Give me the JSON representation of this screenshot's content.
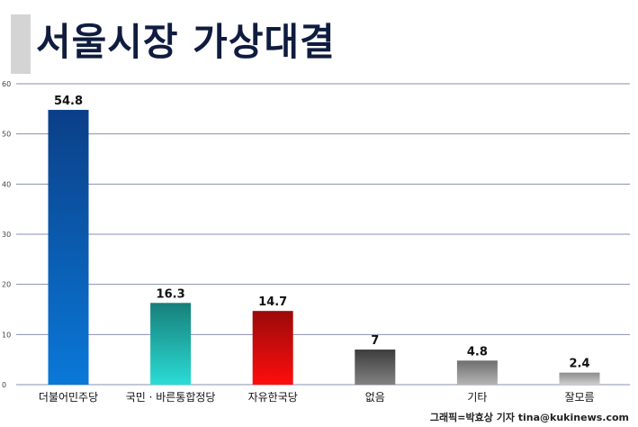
{
  "header": {
    "title": "서울시장 가상대결"
  },
  "footer": {
    "credit": "그래픽=박효상 기자 tina@kukinews.com"
  },
  "chart_data": {
    "type": "bar",
    "title": "서울시장 가상대결",
    "xlabel": "",
    "ylabel": "",
    "ylim": [
      0,
      60
    ],
    "yticks": [
      0,
      10,
      20,
      30,
      40,
      50,
      60
    ],
    "grid": true,
    "categories": [
      "더불어민주당",
      "국민 · 바른통합정당",
      "자유한국당",
      "없음",
      "기타",
      "잘모름"
    ],
    "values": [
      54.8,
      16.3,
      14.7,
      7,
      4.8,
      2.4
    ],
    "data_labels": [
      "54.8",
      "16.3",
      "14.7",
      "7",
      "4.8",
      "2.4"
    ],
    "bar_colors": [
      {
        "top": "#0b3f87",
        "bottom": "#0a78d8"
      },
      {
        "top": "#177f7a",
        "bottom": "#2bdcd6"
      },
      {
        "top": "#9b0a0a",
        "bottom": "#ff0d0d"
      },
      {
        "top": "#3d3d3d",
        "bottom": "#828282"
      },
      {
        "top": "#6e6e6e",
        "bottom": "#b5b5b5"
      },
      {
        "top": "#8c8c8c",
        "bottom": "#cfcfcf"
      }
    ],
    "grid_color": "#8a8fb0"
  }
}
